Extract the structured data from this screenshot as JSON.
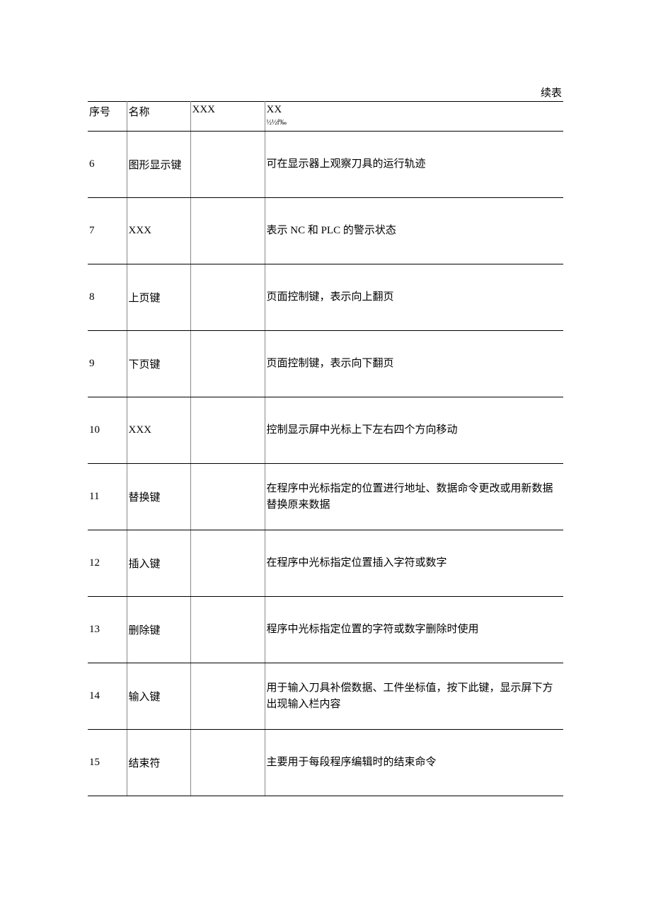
{
  "caption": "续表",
  "table": {
    "columns": {
      "seq": "序号",
      "name": "名称",
      "col3": "XXX",
      "col4_line1": "XX",
      "col4_line2": "½½f‰"
    },
    "rows": [
      {
        "seq": "6",
        "name": "图形显示键",
        "col3": "",
        "desc": "可在显示器上观察刀具的运行轨迹"
      },
      {
        "seq": "7",
        "name": "XXX",
        "col3": "",
        "desc": "表示 NC 和 PLC 的警示状态"
      },
      {
        "seq": "8",
        "name": "上页键",
        "col3": "",
        "desc": "页面控制键，表示向上翻页"
      },
      {
        "seq": "9",
        "name": "下页键",
        "col3": "",
        "desc": "页面控制键，表示向下翻页"
      },
      {
        "seq": "10",
        "name": "XXX",
        "col3": "",
        "desc": "控制显示屏中光标上下左右四个方向移动"
      },
      {
        "seq": "11",
        "name": "替换键",
        "col3": "",
        "desc": "在程序中光标指定的位置进行地址、数据命令更改或用新数据替换原来数据"
      },
      {
        "seq": "12",
        "name": "插入键",
        "col3": "",
        "desc": "在程序中光标指定位置插入字符或数字"
      },
      {
        "seq": "13",
        "name": "删除键",
        "col3": "",
        "desc": "程序中光标指定位置的字符或数字删除时使用"
      },
      {
        "seq": "14",
        "name": "输入键",
        "col3": "",
        "desc": "用于输入刀具补偿数据、工件坐标值，按下此键，显示屏下方出现输入栏内容"
      },
      {
        "seq": "15",
        "name": "结束符",
        "col3": "",
        "desc": "主要用于每段程序编辑时的结束命令"
      }
    ]
  }
}
